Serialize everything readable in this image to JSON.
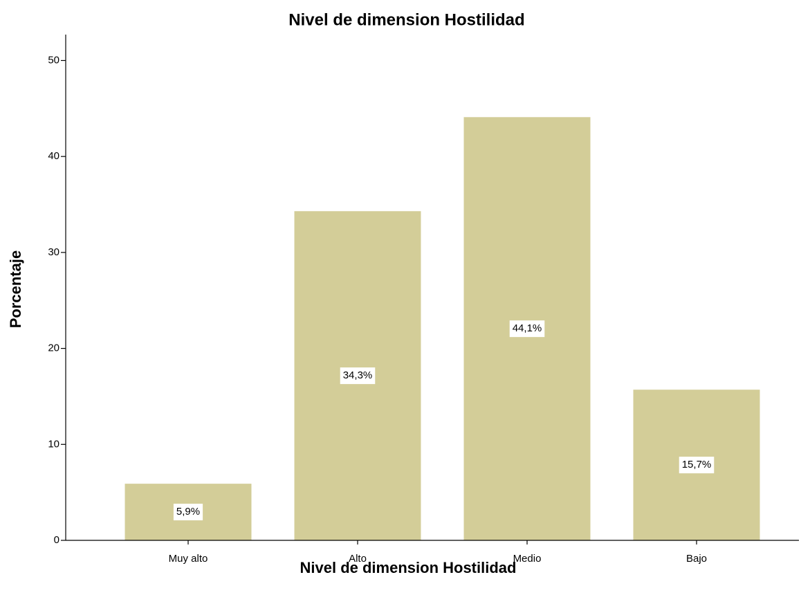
{
  "chart_data": {
    "type": "bar",
    "title": "Nivel de dimension Hostilidad",
    "x_label": "Nivel de dimension Hostilidad",
    "y_label": "Porcentaje",
    "categories": [
      "Muy alto",
      "Alto",
      "Medio",
      "Bajo"
    ],
    "values": [
      5.9,
      34.3,
      44.1,
      15.7
    ],
    "value_labels": [
      "5,9%",
      "34,3%",
      "44,1%",
      "15,7%"
    ],
    "color": "#d3cd98",
    "ylim": [
      0,
      52.7
    ],
    "yticks": [
      0,
      10,
      20,
      30,
      40,
      50
    ],
    "grid": false
  }
}
